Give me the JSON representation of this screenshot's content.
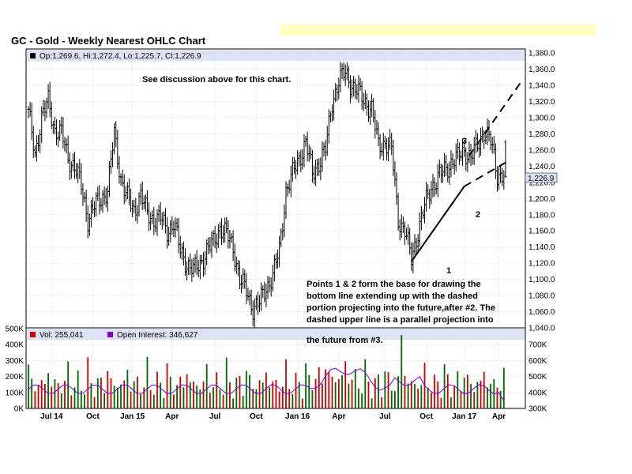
{
  "title": "GC - Gold - Weekly Nearest OHLC Chart",
  "colors": {
    "up": "#cc0000",
    "down": "#006600",
    "oi": "#7a00cc",
    "banner": "#ffffc0",
    "legend_bg": "#dde2f5"
  },
  "price_panel": {
    "legend_text": "Op:1,269.6, Hi:1,272.4, Lo:1,225.7, Cl:1,226.9",
    "last_value_label": "1,226.9",
    "note": "See discussion above for this chart.",
    "annotation_lines": [
      "Points 1 & 2 form the base for drawing the",
      "bottom line extending up with the dashed",
      "portion projecting into the future,after #2.  The",
      "dashed upper line is a parallel projection into",
      "the future from #3."
    ],
    "point_labels": [
      "1",
      "2",
      "3"
    ]
  },
  "volume_panel": {
    "vol_legend": "Vol: 255,041",
    "oi_legend": "Open Interest: 346,627"
  },
  "chart_data": [
    {
      "type": "ohlc",
      "title": "GC - Gold - Weekly Nearest OHLC Chart",
      "x_tick_labels": [
        "Jul 14",
        "Oct",
        "Jan 15",
        "Apr",
        "Jul",
        "Oct",
        "Jan 16",
        "Apr",
        "Jul",
        "Oct",
        "Jan 17",
        "Apr"
      ],
      "y_tick_labels": [
        "1,040.0",
        "1,060.0",
        "1,080.0",
        "1,100.0",
        "1,120.0",
        "1,140.0",
        "1,160.0",
        "1,180.0",
        "1,200.0",
        "1,220.0",
        "1,240.0",
        "1,260.0",
        "1,280.0",
        "1,300.0",
        "1,320.0",
        "1,340.0",
        "1,360.0",
        "1,380.0"
      ],
      "ylim": [
        1040,
        1385
      ],
      "grid": true,
      "last": {
        "open": 1269.6,
        "high": 1272.4,
        "low": 1225.7,
        "close": 1226.9
      },
      "close_path_approx": [
        [
          0,
          1305
        ],
        [
          4,
          1255
        ],
        [
          8,
          1300
        ],
        [
          12,
          1320
        ],
        [
          16,
          1285
        ],
        [
          20,
          1280
        ],
        [
          24,
          1250
        ],
        [
          28,
          1240
        ],
        [
          32,
          1215
        ],
        [
          36,
          1175
        ],
        [
          40,
          1190
        ],
        [
          44,
          1200
        ],
        [
          48,
          1210
        ],
        [
          52,
          1280
        ],
        [
          56,
          1225
        ],
        [
          60,
          1200
        ],
        [
          64,
          1185
        ],
        [
          68,
          1205
        ],
        [
          72,
          1180
        ],
        [
          76,
          1175
        ],
        [
          80,
          1175
        ],
        [
          84,
          1160
        ],
        [
          88,
          1170
        ],
        [
          92,
          1135
        ],
        [
          96,
          1120
        ],
        [
          100,
          1110
        ],
        [
          104,
          1120
        ],
        [
          108,
          1135
        ],
        [
          112,
          1145
        ],
        [
          116,
          1165
        ],
        [
          120,
          1155
        ],
        [
          124,
          1140
        ],
        [
          128,
          1100
        ],
        [
          132,
          1085
        ],
        [
          136,
          1065
        ],
        [
          140,
          1070
        ],
        [
          144,
          1090
        ],
        [
          148,
          1105
        ],
        [
          152,
          1135
        ],
        [
          156,
          1210
        ],
        [
          160,
          1230
        ],
        [
          164,
          1250
        ],
        [
          168,
          1270
        ],
        [
          172,
          1230
        ],
        [
          176,
          1245
        ],
        [
          180,
          1260
        ],
        [
          184,
          1320
        ],
        [
          188,
          1345
        ],
        [
          192,
          1355
        ],
        [
          196,
          1340
        ],
        [
          200,
          1330
        ],
        [
          204,
          1320
        ],
        [
          208,
          1310
        ],
        [
          212,
          1265
        ],
        [
          216,
          1270
        ],
        [
          220,
          1260
        ],
        [
          224,
          1175
        ],
        [
          228,
          1160
        ],
        [
          232,
          1125
        ],
        [
          236,
          1160
        ],
        [
          240,
          1190
        ],
        [
          244,
          1215
        ],
        [
          248,
          1225
        ],
        [
          252,
          1235
        ],
        [
          256,
          1245
        ],
        [
          260,
          1250
        ],
        [
          264,
          1260
        ],
        [
          268,
          1250
        ],
        [
          272,
          1265
        ],
        [
          276,
          1285
        ],
        [
          280,
          1270
        ],
        [
          284,
          1230
        ]
      ],
      "trendlines": [
        {
          "name": "lower",
          "from": [
            232,
            1122
          ],
          "to": [
            264,
            1215
          ],
          "projection_to": [
            292,
            1248
          ]
        },
        {
          "name": "upper",
          "from": [
            267,
            1253
          ],
          "projection_to": [
            298,
            1343
          ]
        }
      ]
    },
    {
      "type": "bar",
      "ylabel_left_ticks": [
        "0K",
        "100K",
        "200K",
        "300K",
        "400K",
        "500K"
      ],
      "ylabel_right_ticks": [
        "300K",
        "400K",
        "500K",
        "600K",
        "700K"
      ],
      "ylim_left": [
        0,
        500000
      ],
      "ylim_right": [
        300000,
        700000
      ],
      "last_volume": 255041,
      "last_open_interest": 346627
    }
  ]
}
